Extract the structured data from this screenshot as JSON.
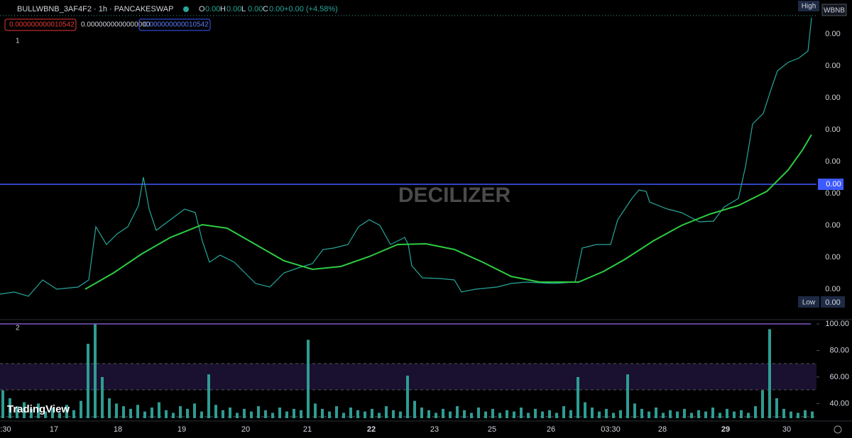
{
  "header": {
    "symbol": "BULLWBNB_3AF4F2 · 1h · PANCAKESWAP",
    "ohlc": [
      {
        "key": "O",
        "value": "0.00"
      },
      {
        "key": "H",
        "value": "0.00"
      },
      {
        "key": "L",
        "value": "0.00"
      },
      {
        "key": "C",
        "value": "0.00"
      }
    ],
    "change": "+0.00 (+4.58%)",
    "boxes": [
      "0.000000000010542",
      "0.0000000000000000",
      "0.000000000010542"
    ],
    "pane_1": "1",
    "pane_2": "2"
  },
  "price_axis": {
    "currency": "WBNB",
    "high": "High",
    "low": "Low",
    "low_value": "0.00",
    "line_value": "0.00",
    "labels": [
      "0.00",
      "0.00",
      "0.00",
      "0.00",
      "0.00",
      "0.00",
      "0.00",
      "0.00",
      "0.00"
    ]
  },
  "watermark": "DECILIZER",
  "logo": "TradingView",
  "time_axis": [
    ":30",
    "17",
    "18",
    "19",
    "20",
    "21",
    "22",
    "23",
    "25",
    "26",
    "03:30",
    "28",
    "29",
    "30"
  ],
  "chart_data": {
    "type": "bar",
    "color": "#2f9c93",
    "ylim": [
      29,
      100
    ],
    "yticks": [
      {
        "value": 40,
        "label": "40.00"
      },
      {
        "value": 60,
        "label": "60.00"
      },
      {
        "value": 80,
        "label": "80.00"
      },
      {
        "value": 100,
        "label": "100.00"
      }
    ],
    "values": [
      50,
      44,
      38,
      41,
      36,
      40,
      34,
      37,
      33,
      39,
      35,
      42,
      85,
      100,
      60,
      44,
      40,
      38,
      36,
      39,
      34,
      37,
      41,
      35,
      33,
      38,
      36,
      40,
      34,
      62,
      39,
      35,
      37,
      33,
      36,
      34,
      38,
      35,
      33,
      37,
      34,
      36,
      35,
      88,
      40,
      36,
      34,
      38,
      33,
      37,
      35,
      34,
      36,
      33,
      38,
      35,
      34,
      61,
      42,
      37,
      35,
      33,
      36,
      34,
      38,
      35,
      33,
      37,
      34,
      36,
      33,
      35,
      34,
      37,
      33,
      36,
      34,
      35,
      33,
      38,
      35,
      60,
      41,
      37,
      34,
      36,
      33,
      35,
      62,
      40,
      36,
      34,
      37,
      33,
      35,
      34,
      36,
      33,
      35,
      34,
      37,
      33,
      36,
      34,
      35,
      33,
      38,
      50,
      96,
      44,
      36,
      34,
      33,
      35,
      34
    ]
  }
}
